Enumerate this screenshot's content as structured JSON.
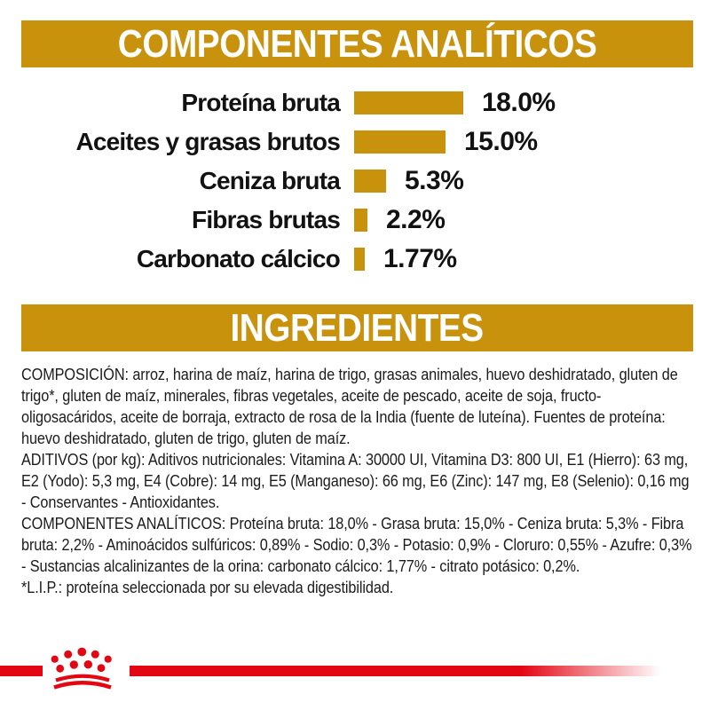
{
  "headers": {
    "analytic": "COMPONENTES ANALÍTICOS",
    "ingredients": "INGREDIENTES"
  },
  "chart_data": {
    "type": "bar",
    "orientation": "horizontal",
    "categories": [
      "Proteína bruta",
      "Aceites y grasas brutos",
      "Ceniza bruta",
      "Fibras brutas",
      "Carbonato cálcico"
    ],
    "values": [
      18.0,
      15.0,
      5.3,
      2.2,
      1.77
    ],
    "value_labels": [
      "18.0%",
      "15.0%",
      "5.3%",
      "2.2%",
      "1.77%"
    ],
    "unit": "%",
    "title": "COMPONENTES ANALÍTICOS",
    "xlabel": "",
    "ylabel": "",
    "grid": false,
    "legend": false,
    "bar_color": "#C8920D"
  },
  "ingredients": {
    "composition": "COMPOSICIÓN: arroz, harina de maíz, harina de trigo, grasas animales, huevo deshidratado, gluten de trigo*, gluten de maíz, minerales, fibras vegetales, aceite de pescado, aceite de soja, fructo-oligosacáridos, aceite de borraja, extracto de rosa de la India (fuente de luteína). Fuentes de proteína: huevo deshidratado, gluten de trigo, gluten de maíz.",
    "additives": "ADITIVOS (por kg): Aditivos nutricionales: Vitamina A: 30000 UI, Vitamina D3: 800 UI, E1 (Hierro): 63 mg, E2 (Yodo): 5,3 mg, E4 (Cobre): 14 mg, E5 (Manganeso): 66 mg, E6 (Zinc): 147 mg, E8 (Selenio): 0,16 mg - Conservantes - Antioxidantes.",
    "analytic_summary": "COMPONENTES ANALÍTICOS: Proteína bruta: 18,0% - Grasa bruta: 15,0% - Ceniza bruta: 5,3% - Fibra bruta: 2,2% - Aminoácidos sulfúricos: 0,89% - Sodio: 0,3% - Potasio: 0,9% - Cloruro: 0,55% - Azufre: 0,3% - Sustancias alcalinizantes de la orina: carbonato cálcico: 1,77% - citrato potásico: 0,2%.",
    "lip_note": "*L.I.P.: proteína seleccionada por su elevada digestibilidad."
  },
  "brand": {
    "logo": "royal-canin-crown"
  },
  "colors": {
    "gold": "#C8920D",
    "red": "#E30613",
    "text": "#1B1B1B",
    "background": "#FFFFFF"
  }
}
